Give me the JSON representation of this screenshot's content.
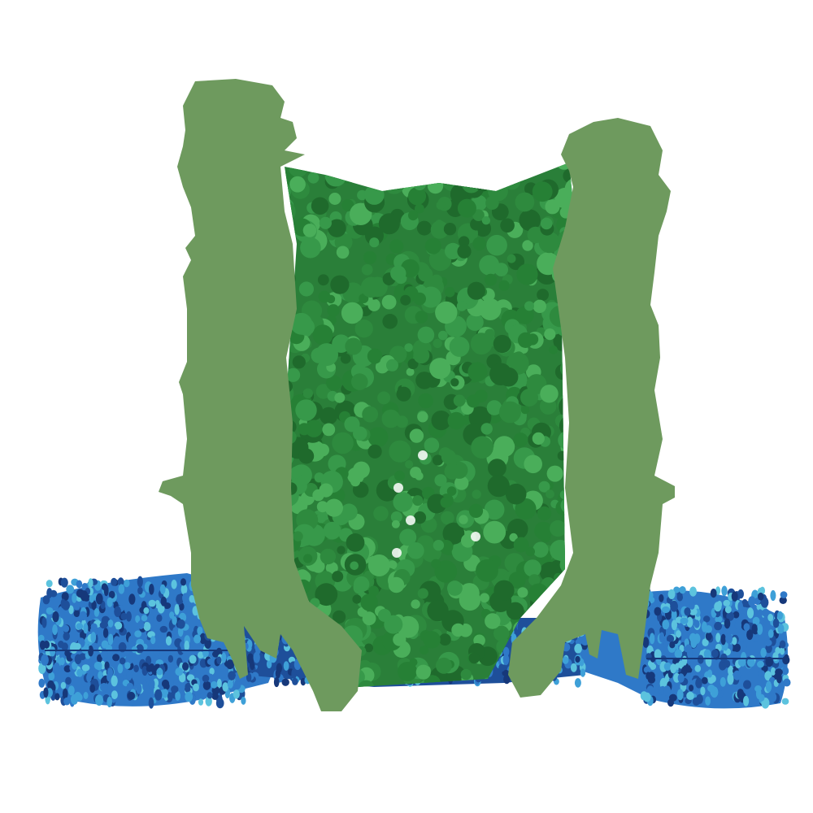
{
  "scene": {
    "subject": "protein-pore-cross-section",
    "colors": {
      "background": "#ffffff",
      "pore_interior": "#2e8a3e",
      "pore_interior_dark": "#1f6a2c",
      "pore_interior_light": "#4aae5a",
      "cut_face": "#6e9a5e",
      "membrane_dark": "#1e4f9a",
      "membrane_mid": "#2f79c8",
      "membrane_light": "#5cc3de",
      "membrane_deep": "#16387a"
    }
  }
}
